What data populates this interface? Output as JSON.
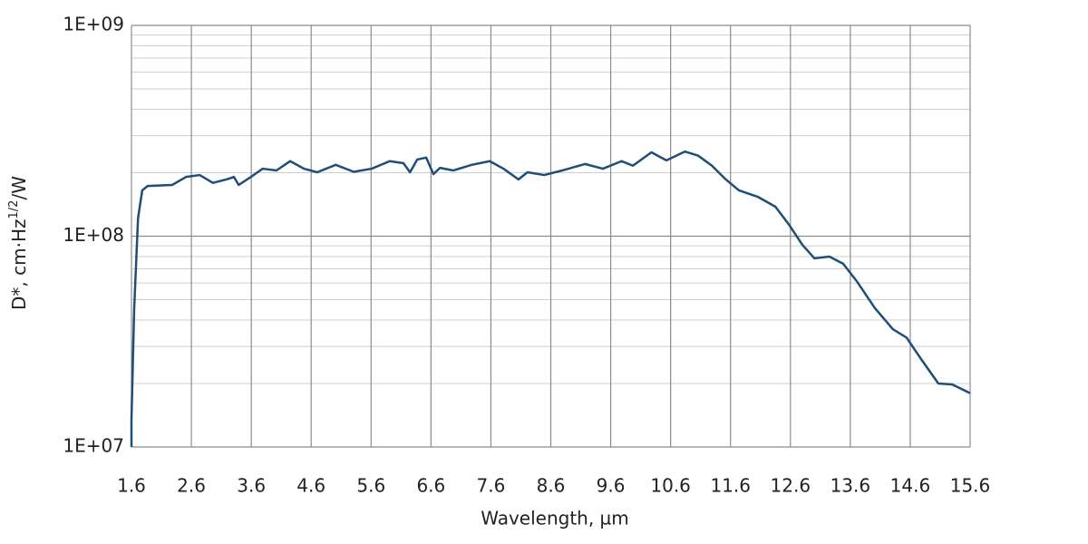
{
  "chart_data": {
    "type": "line",
    "log_scale_y": true,
    "grid": true,
    "xlabel": "Wavelength, µm",
    "ylabel": {
      "text": "D*, cm·Hz",
      "superscript": "1/2",
      "suffix": "/W"
    },
    "xlim": [
      1.6,
      15.6
    ],
    "xticks": [
      1.6,
      2.6,
      3.6,
      4.6,
      5.6,
      6.6,
      7.6,
      8.6,
      9.6,
      10.6,
      11.6,
      12.6,
      13.6,
      14.6,
      15.6
    ],
    "ylim": [
      10000000,
      1000000000
    ],
    "yticks": [
      {
        "value": 10000000,
        "label": "1E+07"
      },
      {
        "value": 100000000,
        "label": "1E+08"
      },
      {
        "value": 1000000000,
        "label": "1E+09"
      }
    ],
    "x": [
      1.6,
      1.6,
      1.645,
      1.71,
      1.78,
      1.87,
      2.28,
      2.51,
      2.74,
      2.96,
      3.19,
      3.31,
      3.39,
      3.57,
      3.79,
      4.02,
      4.25,
      4.48,
      4.7,
      5.01,
      5.31,
      5.61,
      5.91,
      6.14,
      6.25,
      6.37,
      6.52,
      6.64,
      6.75,
      6.97,
      7.28,
      7.58,
      7.81,
      8.06,
      8.21,
      8.49,
      8.79,
      9.17,
      9.47,
      9.78,
      9.97,
      10.28,
      10.53,
      10.84,
      11.06,
      11.29,
      11.52,
      11.74,
      12.05,
      12.35,
      12.58,
      12.8,
      13.0,
      13.25,
      13.48,
      13.71,
      14.01,
      14.31,
      14.54,
      14.77,
      15.07,
      15.3,
      15.6
    ],
    "series": [
      {
        "name": "D*",
        "color": "#1f4e79",
        "values": [
          10000000,
          13500000,
          45000000,
          122000000,
          165000000,
          173000000,
          175000000,
          191000000,
          195000000,
          179000000,
          186000000,
          191000000,
          175000000,
          189000000,
          209000000,
          205000000,
          227000000,
          209000000,
          201000000,
          218000000,
          202000000,
          209000000,
          227000000,
          222000000,
          201000000,
          231000000,
          236000000,
          197000000,
          211000000,
          205000000,
          218000000,
          227000000,
          209000000,
          186000000,
          201000000,
          195000000,
          205000000,
          220000000,
          209000000,
          227000000,
          216000000,
          250000000,
          229000000,
          252000000,
          241000000,
          216000000,
          186000000,
          165000000,
          154000000,
          138000000,
          113000000,
          91000000,
          78500000,
          80000000,
          74000000,
          61000000,
          45600000,
          36200000,
          33000000,
          26400000,
          20000000,
          19800000,
          18000000
        ]
      }
    ]
  }
}
